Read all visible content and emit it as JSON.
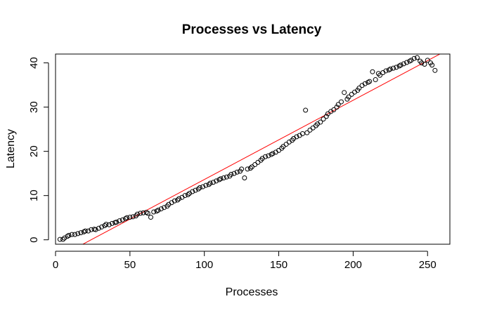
{
  "chart_data": {
    "type": "scatter",
    "title": "Processes vs Latency",
    "xlabel": "Processes",
    "ylabel": "Latency",
    "xlim": [
      0,
      265
    ],
    "ylim": [
      -1,
      42
    ],
    "x_ticks": [
      0,
      50,
      100,
      150,
      200,
      250
    ],
    "y_ticks": [
      0,
      10,
      20,
      30,
      40
    ],
    "grid": false,
    "legend": "none",
    "marker": "open-circle",
    "colors": {
      "points": "#000000",
      "fit_line": "#ff0000",
      "axes": "#000000"
    },
    "series": [
      {
        "x": [
          3,
          5,
          6,
          8,
          9,
          11,
          13,
          15,
          17,
          19,
          20,
          22,
          24,
          26,
          27,
          29,
          31,
          33,
          34,
          36,
          38,
          40,
          41,
          43,
          45,
          47,
          48,
          50,
          52,
          54,
          55,
          57,
          59,
          61,
          62,
          64,
          66,
          68,
          69,
          71,
          73,
          75,
          76,
          78,
          80,
          82,
          83,
          85,
          87,
          89,
          90,
          92,
          94,
          96,
          97,
          99,
          101,
          103,
          104,
          106,
          108,
          110,
          111,
          113,
          115,
          117,
          118,
          120,
          122,
          124,
          125,
          127,
          129,
          131,
          132,
          134,
          136,
          138,
          139,
          141,
          143,
          145,
          146,
          148,
          150,
          152,
          153,
          155,
          157,
          159,
          160,
          162,
          164,
          166,
          168,
          169,
          171,
          173,
          175,
          176,
          178,
          180,
          182,
          183,
          185,
          187,
          189,
          190,
          192,
          194,
          196,
          197,
          199,
          201,
          203,
          204,
          206,
          208,
          210,
          211,
          213,
          215,
          217,
          218,
          220,
          222,
          224,
          225,
          227,
          229,
          231,
          232,
          234,
          236,
          238,
          239,
          241,
          243,
          245,
          246,
          248,
          250,
          252,
          253,
          255
        ],
        "y": [
          0.1,
          0.1,
          0.4,
          0.8,
          1.0,
          1.2,
          1.2,
          1.4,
          1.6,
          1.8,
          2.0,
          2.0,
          2.3,
          2.4,
          2.3,
          2.6,
          2.9,
          3.2,
          3.5,
          3.4,
          3.7,
          3.9,
          4.0,
          4.3,
          4.5,
          4.8,
          5.0,
          5.1,
          5.2,
          5.4,
          5.8,
          6.0,
          6.1,
          6.2,
          6.0,
          5.1,
          6.3,
          6.5,
          6.7,
          7.0,
          7.3,
          7.6,
          8.0,
          8.4,
          8.8,
          9.0,
          9.3,
          9.6,
          10.0,
          10.2,
          10.5,
          10.9,
          11.2,
          11.5,
          11.8,
          12.0,
          12.3,
          12.5,
          12.8,
          13.0,
          13.3,
          13.6,
          13.8,
          14.0,
          14.2,
          14.4,
          14.8,
          15.0,
          15.3,
          15.5,
          16.0,
          14.0,
          16.0,
          16.2,
          16.5,
          17.0,
          17.5,
          18.0,
          18.4,
          18.8,
          19.0,
          19.3,
          19.5,
          19.8,
          20.2,
          20.7,
          21.1,
          21.6,
          22.1,
          22.5,
          22.9,
          23.3,
          23.6,
          24.0,
          29.3,
          24.2,
          24.8,
          25.3,
          25.8,
          26.2,
          26.6,
          27.3,
          27.9,
          28.5,
          29.0,
          29.4,
          30.0,
          30.6,
          31.2,
          33.3,
          31.8,
          32.3,
          32.9,
          33.4,
          33.8,
          34.3,
          34.9,
          35.3,
          35.6,
          35.8,
          38.0,
          36.2,
          37.6,
          37.2,
          37.8,
          38.2,
          38.4,
          38.6,
          38.8,
          39.0,
          39.3,
          39.5,
          39.8,
          40.1,
          40.4,
          40.6,
          41.0,
          41.2,
          40.4,
          40.0,
          39.7,
          40.6,
          40.0,
          39.5,
          38.3
        ]
      }
    ],
    "fit_line": {
      "x": [
        15,
        265
      ],
      "y": [
        -1.6,
        43.2
      ]
    }
  }
}
